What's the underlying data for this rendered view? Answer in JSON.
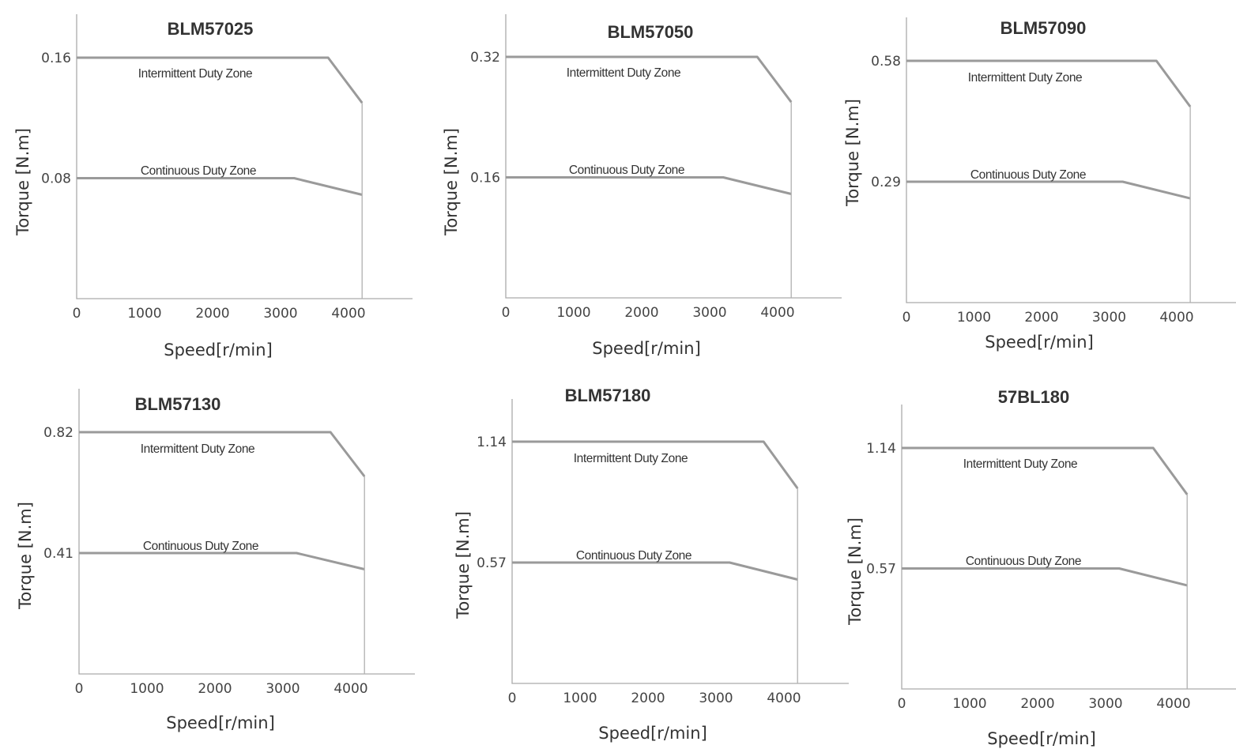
{
  "chart_data": [
    {
      "type": "line",
      "title": "BLM57025",
      "xlabel": "Speed[r/min]",
      "ylabel": "Torque [N.m]",
      "xticks": [
        "0",
        "1000",
        "2000",
        "3000",
        "4000"
      ],
      "yticks": [
        {
          "value": 0.08,
          "label": "0.08"
        },
        {
          "value": 0.16,
          "label": "0.16"
        }
      ],
      "xlim": [
        0,
        4950
      ],
      "ylim": [
        0,
        0.16
      ],
      "series": [
        {
          "name": "Intermittent Duty Zone",
          "x": [
            0,
            3700,
            4200
          ],
          "y": [
            0.16,
            0.16,
            0.13
          ]
        },
        {
          "name": "Continuous Duty Zone",
          "x": [
            0,
            3200,
            4200
          ],
          "y": [
            0.08,
            0.08,
            0.069
          ]
        }
      ]
    },
    {
      "type": "line",
      "title": "BLM57050",
      "xlabel": "Speed[r/min]",
      "ylabel": "Torque [N.m]",
      "xticks": [
        "0",
        "1000",
        "2000",
        "3000",
        "4000"
      ],
      "yticks": [
        {
          "value": 0.16,
          "label": "0.16"
        },
        {
          "value": 0.32,
          "label": "0.32"
        }
      ],
      "xlim": [
        0,
        4950
      ],
      "ylim": [
        0,
        0.32
      ],
      "series": [
        {
          "name": "Intermittent Duty Zone",
          "x": [
            0,
            3700,
            4200
          ],
          "y": [
            0.32,
            0.32,
            0.26
          ]
        },
        {
          "name": "Continuous Duty Zone",
          "x": [
            0,
            3200,
            4200
          ],
          "y": [
            0.16,
            0.16,
            0.138
          ]
        }
      ]
    },
    {
      "type": "line",
      "title": "BLM57090",
      "xlabel": "Speed[r/min]",
      "ylabel": "Torque [N.m]",
      "xticks": [
        "0",
        "1000",
        "2000",
        "3000",
        "4000"
      ],
      "yticks": [
        {
          "value": 0.29,
          "label": "0.29"
        },
        {
          "value": 0.58,
          "label": "0.58"
        }
      ],
      "xlim": [
        0,
        4950
      ],
      "ylim": [
        0,
        0.58
      ],
      "series": [
        {
          "name": "Intermittent Duty Zone",
          "x": [
            0,
            3700,
            4200
          ],
          "y": [
            0.58,
            0.58,
            0.47
          ]
        },
        {
          "name": "Continuous Duty Zone",
          "x": [
            0,
            3200,
            4200
          ],
          "y": [
            0.29,
            0.29,
            0.25
          ]
        }
      ]
    },
    {
      "type": "line",
      "title": "BLM57130",
      "xlabel": "Speed[r/min]",
      "ylabel": "Torque [N.m]",
      "xticks": [
        "0",
        "1000",
        "2000",
        "3000",
        "4000"
      ],
      "yticks": [
        {
          "value": 0.41,
          "label": "0.41"
        },
        {
          "value": 0.82,
          "label": "0.82"
        }
      ],
      "xlim": [
        0,
        4950
      ],
      "ylim": [
        0,
        0.82
      ],
      "series": [
        {
          "name": "Intermittent Duty Zone",
          "x": [
            0,
            3700,
            4200
          ],
          "y": [
            0.82,
            0.82,
            0.67
          ]
        },
        {
          "name": "Continuous Duty Zone",
          "x": [
            0,
            3200,
            4200
          ],
          "y": [
            0.41,
            0.41,
            0.355
          ]
        }
      ]
    },
    {
      "type": "line",
      "title": "BLM57180",
      "xlabel": "Speed[r/min]",
      "ylabel": "Torque [N.m]",
      "xticks": [
        "0",
        "1000",
        "2000",
        "3000",
        "4000"
      ],
      "yticks": [
        {
          "value": 0.57,
          "label": "0.57"
        },
        {
          "value": 1.14,
          "label": "1.14"
        }
      ],
      "xlim": [
        0,
        4950
      ],
      "ylim": [
        0,
        1.14
      ],
      "series": [
        {
          "name": "Intermittent Duty Zone",
          "x": [
            0,
            3700,
            4200
          ],
          "y": [
            1.14,
            1.14,
            0.92
          ]
        },
        {
          "name": "Continuous Duty Zone",
          "x": [
            0,
            3200,
            4200
          ],
          "y": [
            0.57,
            0.57,
            0.49
          ]
        }
      ]
    },
    {
      "type": "line",
      "title": "57BL180",
      "xlabel": "Speed[r/min]",
      "ylabel": "Torque [N.m]",
      "xticks": [
        "0",
        "1000",
        "2000",
        "3000",
        "4000"
      ],
      "yticks": [
        {
          "value": 0.57,
          "label": "0.57"
        },
        {
          "value": 1.14,
          "label": "1.14"
        }
      ],
      "xlim": [
        0,
        4950
      ],
      "ylim": [
        0,
        1.14
      ],
      "series": [
        {
          "name": "Intermittent Duty Zone",
          "x": [
            0,
            3700,
            4200
          ],
          "y": [
            1.14,
            1.14,
            0.92
          ]
        },
        {
          "name": "Continuous Duty Zone",
          "x": [
            0,
            3200,
            4200
          ],
          "y": [
            0.57,
            0.57,
            0.49
          ]
        }
      ]
    }
  ]
}
